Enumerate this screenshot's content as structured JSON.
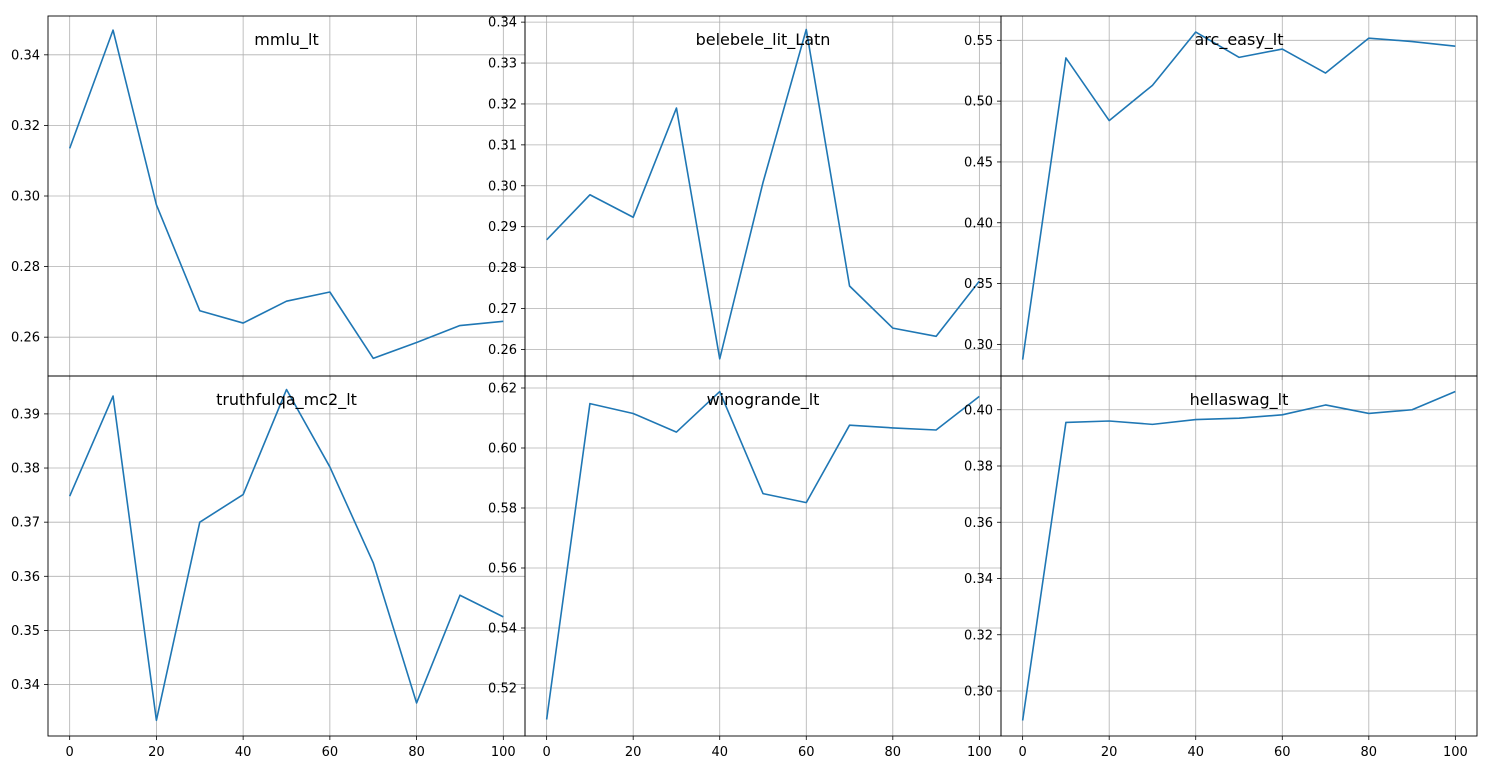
{
  "chart_data": [
    {
      "type": "line",
      "title": "mmlu_lt",
      "x": [
        0,
        10,
        20,
        30,
        40,
        50,
        60,
        70,
        80,
        90,
        100
      ],
      "series": [
        {
          "values": [
            0.3135,
            0.347,
            0.2975,
            0.2675,
            0.264,
            0.2702,
            0.2728,
            0.254,
            0.2585,
            0.2633,
            0.2645
          ]
        }
      ],
      "xlim": [
        -5,
        105
      ],
      "ylim": [
        0.249,
        0.351
      ],
      "xticks": [
        0,
        20,
        40,
        60,
        80,
        100
      ],
      "xtick_labels": [
        "0",
        "20",
        "40",
        "60",
        "80",
        "100"
      ],
      "yticks": [
        0.26,
        0.28,
        0.3,
        0.32,
        0.34
      ],
      "ytick_labels": [
        "0.26",
        "0.28",
        "0.30",
        "0.32",
        "0.34"
      ],
      "grid": true,
      "line_color": "#1f77b4"
    },
    {
      "type": "line",
      "title": "belebele_lit_Latn",
      "x": [
        0,
        10,
        20,
        30,
        40,
        50,
        60,
        70,
        80,
        90,
        100
      ],
      "series": [
        {
          "values": [
            0.2868,
            0.2978,
            0.2923,
            0.319,
            0.2577,
            0.3008,
            0.3382,
            0.2755,
            0.2652,
            0.2632,
            0.2767
          ]
        }
      ],
      "xlim": [
        -5,
        105
      ],
      "ylim": [
        0.2535,
        0.3415
      ],
      "xticks": [
        0,
        20,
        40,
        60,
        80,
        100
      ],
      "xtick_labels": [
        "0",
        "20",
        "40",
        "60",
        "80",
        "100"
      ],
      "yticks": [
        0.26,
        0.27,
        0.28,
        0.29,
        0.3,
        0.31,
        0.32,
        0.33,
        0.34
      ],
      "ytick_labels": [
        "0.26",
        "0.27",
        "0.28",
        "0.29",
        "0.30",
        "0.31",
        "0.32",
        "0.33",
        "0.34"
      ],
      "grid": true,
      "line_color": "#1f77b4"
    },
    {
      "type": "line",
      "title": "arc_easy_lt",
      "x": [
        0,
        10,
        20,
        30,
        40,
        50,
        60,
        70,
        80,
        90,
        100
      ],
      "series": [
        {
          "values": [
            0.2875,
            0.5355,
            0.484,
            0.513,
            0.5568,
            0.536,
            0.5428,
            0.5231,
            0.5518,
            0.549,
            0.5452
          ]
        }
      ],
      "xlim": [
        -5,
        105
      ],
      "ylim": [
        0.274,
        0.57
      ],
      "xticks": [
        0,
        20,
        40,
        60,
        80,
        100
      ],
      "xtick_labels": [
        "0",
        "20",
        "40",
        "60",
        "80",
        "100"
      ],
      "yticks": [
        0.3,
        0.35,
        0.4,
        0.45,
        0.5,
        0.55
      ],
      "ytick_labels": [
        "0.30",
        "0.35",
        "0.40",
        "0.45",
        "0.50",
        "0.55"
      ],
      "grid": true,
      "line_color": "#1f77b4"
    },
    {
      "type": "line",
      "title": "truthfulqa_mc2_lt",
      "x": [
        0,
        10,
        20,
        30,
        40,
        50,
        60,
        70,
        80,
        90,
        100
      ],
      "series": [
        {
          "values": [
            0.3748,
            0.3933,
            0.3334,
            0.37,
            0.3751,
            0.3945,
            0.3802,
            0.3625,
            0.3366,
            0.3565,
            0.3525
          ]
        }
      ],
      "xlim": [
        -5,
        105
      ],
      "ylim": [
        0.3305,
        0.397
      ],
      "xticks": [
        0,
        20,
        40,
        60,
        80,
        100
      ],
      "xtick_labels": [
        "0",
        "20",
        "40",
        "60",
        "80",
        "100"
      ],
      "yticks": [
        0.34,
        0.35,
        0.36,
        0.37,
        0.38,
        0.39
      ],
      "ytick_labels": [
        "0.34",
        "0.35",
        "0.36",
        "0.37",
        "0.38",
        "0.39"
      ],
      "grid": true,
      "line_color": "#1f77b4"
    },
    {
      "type": "line",
      "title": "winogrande_lt",
      "x": [
        0,
        10,
        20,
        30,
        40,
        50,
        60,
        70,
        80,
        90,
        100
      ],
      "series": [
        {
          "values": [
            0.5095,
            0.6148,
            0.6115,
            0.6053,
            0.6188,
            0.5848,
            0.5818,
            0.6076,
            0.6067,
            0.606,
            0.6172
          ]
        }
      ],
      "xlim": [
        -5,
        105
      ],
      "ylim": [
        0.504,
        0.624
      ],
      "xticks": [
        0,
        20,
        40,
        60,
        80,
        100
      ],
      "xtick_labels": [
        "0",
        "20",
        "40",
        "60",
        "80",
        "100"
      ],
      "yticks": [
        0.52,
        0.54,
        0.56,
        0.58,
        0.6,
        0.62
      ],
      "ytick_labels": [
        "0.52",
        "0.54",
        "0.56",
        "0.58",
        "0.60",
        "0.62"
      ],
      "grid": true,
      "line_color": "#1f77b4"
    },
    {
      "type": "line",
      "title": "hellaswag_lt",
      "x": [
        0,
        10,
        20,
        30,
        40,
        50,
        60,
        70,
        80,
        90,
        100
      ],
      "series": [
        {
          "values": [
            0.2895,
            0.3955,
            0.396,
            0.3948,
            0.3965,
            0.397,
            0.3982,
            0.4017,
            0.3987,
            0.4,
            0.4065
          ]
        }
      ],
      "xlim": [
        -5,
        105
      ],
      "ylim": [
        0.284,
        0.412
      ],
      "xticks": [
        0,
        20,
        40,
        60,
        80,
        100
      ],
      "xtick_labels": [
        "0",
        "20",
        "40",
        "60",
        "80",
        "100"
      ],
      "yticks": [
        0.3,
        0.32,
        0.34,
        0.36,
        0.38,
        0.4
      ],
      "ytick_labels": [
        "0.30",
        "0.32",
        "0.34",
        "0.36",
        "0.38",
        "0.40"
      ],
      "grid": true,
      "line_color": "#1f77b4"
    }
  ]
}
